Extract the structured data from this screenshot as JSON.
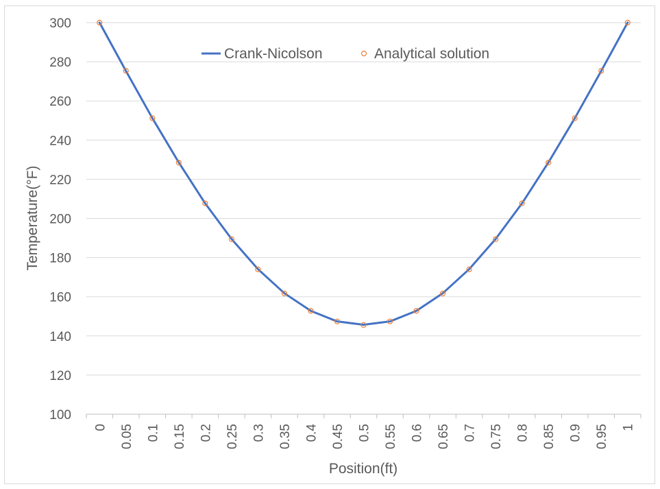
{
  "chart_data": {
    "type": "line",
    "title": "",
    "xlabel": "Position(ft)",
    "ylabel": "Temperature(°F)",
    "categories": [
      "0",
      "0.05",
      "0.1",
      "0.15",
      "0.2",
      "0.25",
      "0.3",
      "0.35",
      "0.4",
      "0.45",
      "0.5",
      "0.55",
      "0.6",
      "0.65",
      "0.7",
      "0.75",
      "0.8",
      "0.85",
      "0.9",
      "0.95",
      "1"
    ],
    "ylim": [
      100,
      300
    ],
    "yticks": [
      "100",
      "120",
      "140",
      "160",
      "180",
      "200",
      "220",
      "240",
      "260",
      "280",
      "300"
    ],
    "grid": "horizontal",
    "legend_position": "top-center",
    "series": [
      {
        "name": "Crank-Nicolson",
        "style": "line",
        "color": "#4472C4",
        "values": [
          300,
          275.3,
          251.2,
          228.6,
          207.7,
          189.5,
          174.1,
          161.8,
          152.8,
          147.4,
          145.7,
          147.4,
          152.8,
          161.8,
          174.1,
          189.5,
          207.7,
          228.6,
          251.2,
          275.3,
          300
        ]
      },
      {
        "name": "Analytical solution",
        "style": "marker",
        "color": "#ED7D31",
        "values": [
          300,
          275.4,
          251.2,
          228.5,
          207.7,
          189.4,
          174.0,
          161.7,
          152.8,
          147.4,
          145.6,
          147.4,
          152.8,
          161.7,
          174.0,
          189.4,
          207.7,
          228.5,
          251.2,
          275.4,
          300
        ]
      }
    ]
  }
}
